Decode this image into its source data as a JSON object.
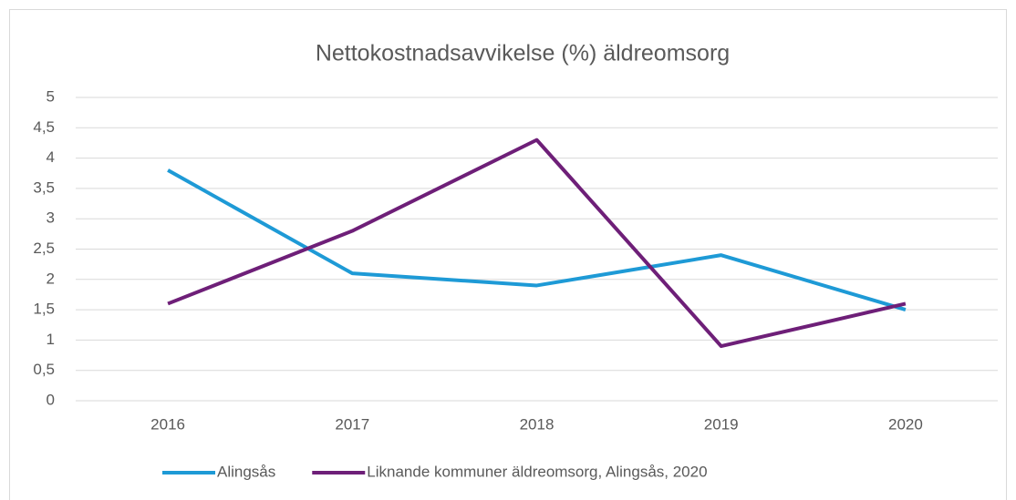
{
  "chart_data": {
    "type": "line",
    "title": "Nettokostnadsavvikelse (%) äldreomsorg",
    "categories": [
      "2016",
      "2017",
      "2018",
      "2019",
      "2020"
    ],
    "series": [
      {
        "name": "Alingsås",
        "color": "#1e9ad6",
        "values": [
          3.8,
          2.1,
          1.9,
          2.4,
          1.5
        ]
      },
      {
        "name": "Liknande kommuner äldreomsorg, Alingsås, 2020",
        "color": "#6e1f78",
        "values": [
          1.6,
          2.8,
          4.3,
          0.9,
          1.6
        ]
      }
    ],
    "ylim": [
      0,
      5
    ],
    "yticks": [
      0,
      {
        "value": 0.5,
        "label": "0,5"
      },
      1,
      {
        "value": 1.5,
        "label": "1,5"
      },
      2,
      {
        "value": 2.5,
        "label": "2,5"
      },
      3,
      {
        "value": 3.5,
        "label": "3,5"
      },
      4,
      {
        "value": 4.5,
        "label": "4,5"
      },
      5
    ],
    "grid": true,
    "legend": "bottom"
  }
}
